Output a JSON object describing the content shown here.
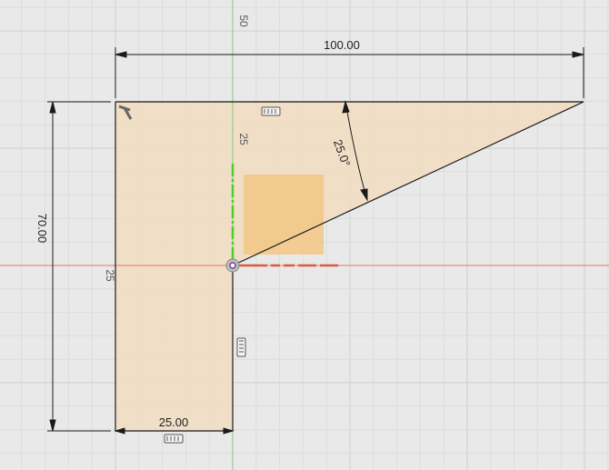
{
  "viewport": {
    "colors": {
      "background": "#e9e9e9",
      "grid_minor": "#dcdcdc",
      "grid_major": "#cfcfcf",
      "profile_fill": "#f2dcc0",
      "profile_stroke": "#1a1a1a",
      "highlight_square": "#f3c784",
      "x_axis": "#e05a3a",
      "y_axis": "#4ad02a",
      "dimension": "#1a1a1a"
    },
    "axis_labels": {
      "y_top": "50",
      "y_mid": "25",
      "x_left": "25"
    }
  },
  "sketch": {
    "dimensions": {
      "top_width": "100.00",
      "left_height": "70.00",
      "bottom_width": "25.00",
      "angle": "25.0°"
    },
    "constraint_icons": [
      "horizontal-constraint-icon",
      "vertical-constraint-icon",
      "horizontal-constraint-icon",
      "perpendicular-constraint-icon"
    ]
  }
}
